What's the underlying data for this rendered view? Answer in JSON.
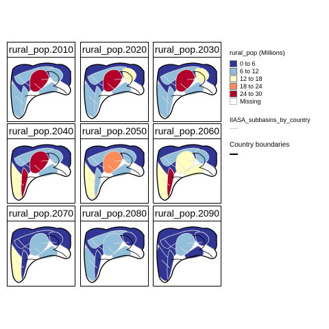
{
  "panels": [
    {
      "title": "rural_pop.2010",
      "bins": {
        "west": "0 to 6",
        "belt": "6 to 12",
        "central": "24 to 30",
        "east": "6 to 12",
        "tail": "6 to 12",
        "hook": "6 to 12",
        "pocket": "6 to 12"
      }
    },
    {
      "title": "rural_pop.2020",
      "bins": {
        "west": "0 to 6",
        "belt": "6 to 12",
        "central": "24 to 30",
        "east": "12 to 18",
        "tail": "6 to 12",
        "hook": "6 to 12",
        "pocket": "6 to 12"
      }
    },
    {
      "title": "rural_pop.2030",
      "bins": {
        "west": "0 to 6",
        "belt": "6 to 12",
        "central": "24 to 30",
        "east": "12 to 18",
        "tail": "6 to 12",
        "hook": "6 to 12",
        "pocket": "6 to 12"
      }
    },
    {
      "title": "rural_pop.2040",
      "bins": {
        "west": "0 to 6",
        "belt": "6 to 12",
        "central": "24 to 30",
        "east": "6 to 12",
        "tail": "12 to 18",
        "hook": "24 to 30",
        "pocket": "6 to 12"
      }
    },
    {
      "title": "rural_pop.2050",
      "bins": {
        "west": "0 to 6",
        "belt": "6 to 12",
        "central": "18 to 24",
        "east": "6 to 12",
        "tail": "12 to 18",
        "hook": "6 to 12",
        "pocket": "6 to 12"
      }
    },
    {
      "title": "rural_pop.2060",
      "bins": {
        "west": "0 to 6",
        "belt": "6 to 12",
        "central": "12 to 18",
        "east": "6 to 12",
        "tail": "12 to 18",
        "hook": "24 to 30",
        "pocket": "12 to 18"
      }
    },
    {
      "title": "rural_pop.2070",
      "bins": {
        "west": "0 to 6",
        "belt": "0 to 6",
        "central": "6 to 12",
        "east": "0 to 6",
        "tail": "12 to 18",
        "hook": "0 to 6",
        "pocket": "6 to 12"
      }
    },
    {
      "title": "rural_pop.2080",
      "bins": {
        "west": "0 to 6",
        "belt": "6 to 12",
        "central": "6 to 12",
        "east": "0 to 6",
        "tail": "6 to 12",
        "hook": "0 to 6",
        "pocket": "6 to 12"
      }
    },
    {
      "title": "rural_pop.2090",
      "bins": {
        "west": "0 to 6",
        "belt": "0 to 6",
        "central": "6 to 12",
        "east": "0 to 6",
        "tail": "0 to 6",
        "hook": "0 to 6",
        "pocket": "0 to 6"
      }
    }
  ],
  "legend": {
    "title": "rural_pop (Millions)",
    "items": [
      {
        "label": "0 to 6",
        "color": "#313695"
      },
      {
        "label": "6 to 12",
        "color": "#91bfdb"
      },
      {
        "label": "12 to 18",
        "color": "#ffffbf"
      },
      {
        "label": "18 to 24",
        "color": "#fc8d59"
      },
      {
        "label": "24 to 30",
        "color": "#b2002a"
      },
      {
        "label": "Missing",
        "color": "#ffffff"
      }
    ],
    "subbasin_label": "IIASA_subbasins_by_country",
    "subbasin_color": "#d0d0d0",
    "country_label": "Country boundaries",
    "country_color": "#000000"
  }
}
